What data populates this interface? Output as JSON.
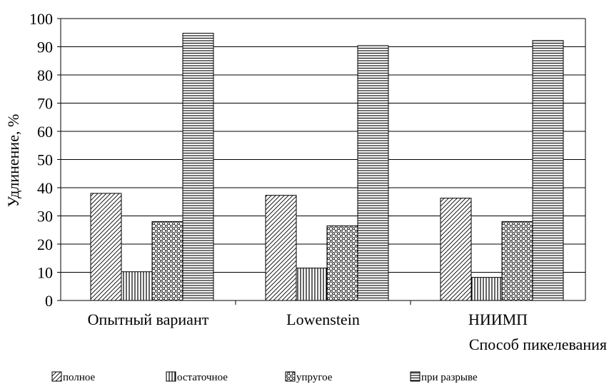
{
  "chart_data": {
    "type": "bar",
    "title": "",
    "xlabel": "Способ пикелевания",
    "ylabel": "Удлинение, %",
    "ylim": [
      0,
      100
    ],
    "yticks": [
      "0",
      "10",
      "20",
      "30",
      "40",
      "50",
      "60",
      "70",
      "80",
      "90",
      "100"
    ],
    "grid": true,
    "legend_position": "bottom",
    "categories": [
      "Опытный вариант",
      "Lowenstein",
      "НИИМП"
    ],
    "series": [
      {
        "name": "полное",
        "values": [
          38,
          37.3,
          36.3
        ]
      },
      {
        "name": "остаточное",
        "values": [
          10.2,
          11.5,
          8.2
        ]
      },
      {
        "name": "упругое",
        "values": [
          28,
          26.5,
          28
        ]
      },
      {
        "name": "при разрыве",
        "values": [
          94.8,
          90.4,
          92.2
        ]
      }
    ]
  }
}
